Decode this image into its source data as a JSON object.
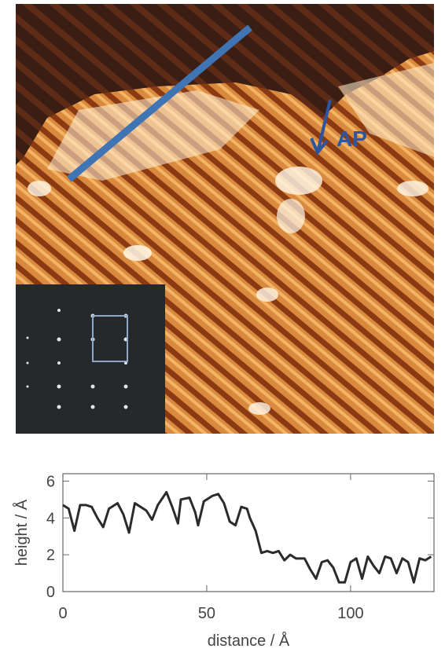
{
  "image": {
    "annotation": "AP"
  },
  "chart_data": {
    "type": "line",
    "x_label": "distance / Å",
    "y_label": "height / Å",
    "xlim": [
      0,
      129
    ],
    "ylim": [
      0,
      6.4
    ],
    "xticks": [
      0,
      50,
      100
    ],
    "yticks": [
      0,
      2,
      4,
      6
    ],
    "series": [
      {
        "color": "#2b2b2b",
        "x": [
          0,
          2,
          4,
          6,
          8,
          10,
          12,
          14,
          16,
          19,
          21,
          23,
          25,
          27,
          29,
          31,
          33,
          36,
          38,
          40,
          41,
          44,
          46,
          47,
          49,
          52,
          54,
          56,
          58,
          60,
          62,
          64,
          65,
          67,
          69,
          71,
          73,
          75,
          77,
          79,
          81,
          84,
          86,
          88,
          90,
          92,
          94,
          96,
          98,
          100,
          102,
          104,
          106,
          108,
          110,
          112,
          114,
          116,
          118,
          120,
          122,
          124,
          126,
          128
        ],
        "values": [
          4.7,
          4.5,
          3.3,
          4.7,
          4.7,
          4.6,
          4.0,
          3.5,
          4.5,
          4.8,
          4.2,
          3.2,
          4.8,
          4.6,
          4.4,
          3.9,
          4.7,
          5.4,
          4.6,
          3.7,
          5.0,
          5.1,
          4.3,
          3.6,
          4.9,
          5.2,
          5.3,
          4.8,
          3.8,
          3.6,
          4.6,
          4.5,
          4.0,
          3.3,
          2.1,
          2.2,
          2.1,
          2.2,
          1.7,
          2.0,
          1.8,
          1.8,
          1.2,
          0.7,
          1.6,
          1.7,
          1.3,
          0.5,
          0.5,
          1.6,
          1.8,
          0.7,
          1.9,
          1.4,
          1.0,
          1.9,
          1.8,
          1.0,
          1.8,
          1.6,
          0.5,
          1.8,
          1.7,
          1.9
        ]
      }
    ]
  }
}
